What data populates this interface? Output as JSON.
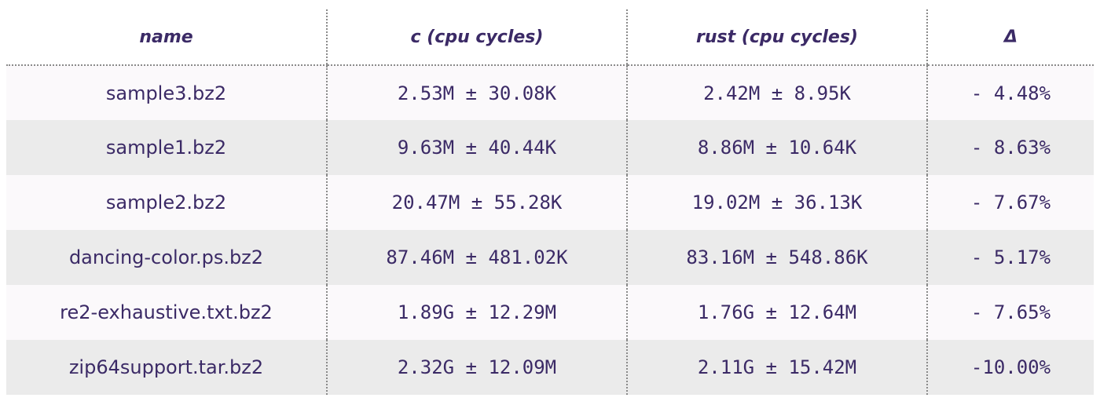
{
  "chart_data": {
    "type": "table",
    "columns": [
      "name",
      "c (cpu cycles)",
      "rust (cpu cycles)",
      "Δ"
    ],
    "rows": [
      {
        "name": "sample3.bz2",
        "c": "2.53M ± 30.08K",
        "rust": "2.42M ± 8.95K",
        "delta": "- 4.48%"
      },
      {
        "name": "sample1.bz2",
        "c": "9.63M ± 40.44K",
        "rust": "8.86M ± 10.64K",
        "delta": "- 8.63%"
      },
      {
        "name": "sample2.bz2",
        "c": "20.47M ± 55.28K",
        "rust": "19.02M ± 36.13K",
        "delta": "- 7.67%"
      },
      {
        "name": "dancing-color.ps.bz2",
        "c": "87.46M ± 481.02K",
        "rust": "83.16M ± 548.86K",
        "delta": "- 5.17%"
      },
      {
        "name": "re2-exhaustive.txt.bz2",
        "c": "1.89G ± 12.29M",
        "rust": "1.76G ± 12.64M",
        "delta": "- 7.65%"
      },
      {
        "name": "zip64support.tar.bz2",
        "c": "2.32G ± 12.09M",
        "rust": "2.11G ± 15.42M",
        "delta": "-10.00%"
      }
    ]
  },
  "colors": {
    "text": "#3b2a66",
    "row_light": "#fbf9fb",
    "row_shaded": "#ebebeb",
    "divider": "#8a8a8a"
  }
}
